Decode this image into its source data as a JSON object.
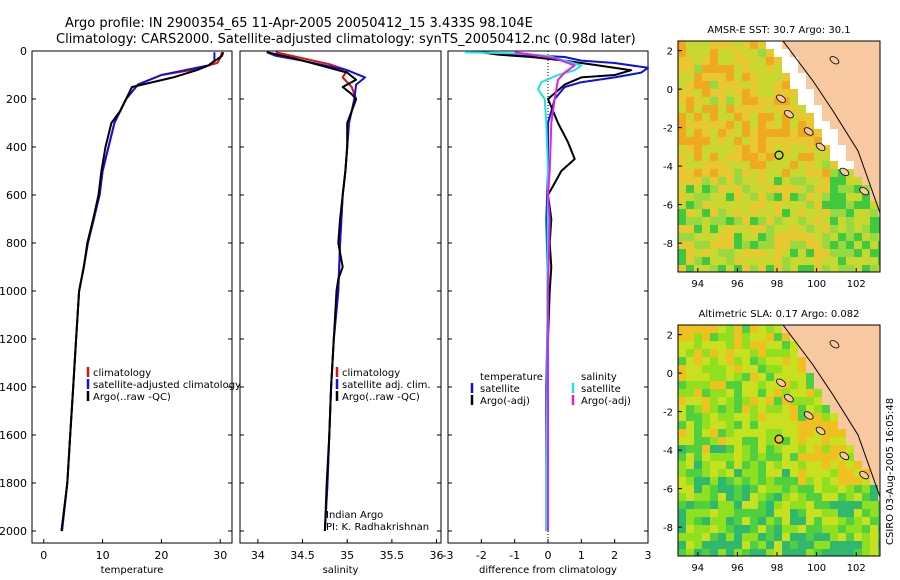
{
  "header": {
    "line1": "Argo profile: IN 2900354_65 11-Apr-2005 20050412_15 3.433S 98.104E",
    "line2": "Climatology: CARS2000. Satellite-adjusted climatology: synTS_20050412.nc (0.98d later)"
  },
  "side_stamp": "CSIRO 03-Aug-2005 16:05:48",
  "colors": {
    "red": "#e01010",
    "blue": "#1010e0",
    "black": "#000000",
    "cyan": "#20e0e8",
    "magenta": "#e020e0"
  },
  "chart_data": [
    {
      "type": "line",
      "name": "temperature",
      "xlabel": "temperature",
      "xlim": [
        -2,
        32
      ],
      "ylim": [
        0,
        2050
      ],
      "xticks": [
        "0",
        "10",
        "20",
        "30"
      ],
      "xtick_values": [
        0,
        10,
        20,
        30
      ],
      "yticks": [
        "0",
        "200",
        "400",
        "600",
        "800",
        "1000",
        "1200",
        "1400",
        "1600",
        "1800",
        "2000"
      ],
      "ytick_values": [
        0,
        200,
        400,
        600,
        800,
        1000,
        1200,
        1400,
        1600,
        1800,
        2000
      ],
      "legend": [
        "climatology",
        "satellite-adjusted climatology",
        "Argo(..raw -QC)"
      ],
      "series": [
        {
          "name": "climatology",
          "color": "red",
          "points": [
            [
              30.3,
              5
            ],
            [
              30,
              30
            ],
            [
              29.5,
              50
            ],
            [
              25,
              80
            ],
            [
              20,
              100
            ],
            [
              16,
              140
            ],
            [
              14,
              200
            ],
            [
              13,
              250
            ],
            [
              12,
              300
            ],
            [
              11,
              400
            ],
            [
              10,
              500
            ],
            [
              9.5,
              600
            ],
            [
              8.5,
              700
            ],
            [
              7.5,
              800
            ],
            [
              6.8,
              900
            ],
            [
              6,
              1000
            ],
            [
              5.5,
              1200
            ],
            [
              5,
              1400
            ],
            [
              4.5,
              1600
            ],
            [
              4,
              1800
            ],
            [
              3.1,
              2000
            ]
          ]
        },
        {
          "name": "satellite-adjusted climatology",
          "color": "blue",
          "points": [
            [
              29,
              5
            ],
            [
              29,
              40
            ],
            [
              28,
              60
            ],
            [
              24,
              80
            ],
            [
              20,
              100
            ],
            [
              16,
              140
            ],
            [
              14,
              200
            ],
            [
              13,
              250
            ],
            [
              12,
              300
            ],
            [
              11,
              400
            ],
            [
              10,
              500
            ],
            [
              9.5,
              600
            ],
            [
              8.5,
              700
            ],
            [
              7.5,
              800
            ],
            [
              6.8,
              900
            ],
            [
              6,
              1000
            ],
            [
              5.5,
              1200
            ],
            [
              5,
              1400
            ],
            [
              4.5,
              1600
            ],
            [
              4,
              1800
            ],
            [
              3.1,
              2000
            ]
          ]
        },
        {
          "name": "Argo(..raw -QC)",
          "color": "black",
          "points": [
            [
              30.5,
              5
            ],
            [
              30.3,
              20
            ],
            [
              28,
              60
            ],
            [
              26,
              80
            ],
            [
              22,
              110
            ],
            [
              15,
              150
            ],
            [
              14,
              200
            ],
            [
              13,
              250
            ],
            [
              11.5,
              300
            ],
            [
              10.5,
              400
            ],
            [
              9.8,
              500
            ],
            [
              9.3,
              600
            ],
            [
              8.4,
              700
            ],
            [
              7.4,
              800
            ],
            [
              6.8,
              900
            ],
            [
              6,
              1000
            ],
            [
              5.5,
              1200
            ],
            [
              5,
              1400
            ],
            [
              4.5,
              1600
            ],
            [
              4,
              1800
            ],
            [
              3,
              2000
            ]
          ]
        }
      ]
    },
    {
      "type": "line",
      "name": "salinity",
      "xlabel": "salinity",
      "xlim": [
        33.8,
        36.05
      ],
      "ylim": [
        0,
        2050
      ],
      "xticks": [
        "34",
        "34.5",
        "35",
        "35.5",
        "36"
      ],
      "xtick_values": [
        34,
        34.5,
        35,
        35.5,
        36
      ],
      "legend": [
        "climatology",
        "satellite adj. clim.",
        "Argo(..raw -QC)"
      ],
      "annotation": [
        "Indian Argo",
        "PI: K. Radhakrishnan"
      ],
      "series": [
        {
          "name": "climatology",
          "color": "red",
          "points": [
            [
              34.2,
              5
            ],
            [
              34.5,
              30
            ],
            [
              34.8,
              55
            ],
            [
              35,
              80
            ],
            [
              34.95,
              110
            ],
            [
              35.05,
              150
            ],
            [
              35.1,
              200
            ],
            [
              35.05,
              250
            ],
            [
              35.02,
              300
            ],
            [
              35,
              400
            ],
            [
              34.98,
              500
            ],
            [
              34.95,
              600
            ],
            [
              34.92,
              800
            ],
            [
              34.9,
              1000
            ],
            [
              34.85,
              1200
            ],
            [
              34.82,
              1400
            ],
            [
              34.8,
              1600
            ],
            [
              34.78,
              1800
            ],
            [
              34.75,
              2000
            ]
          ]
        },
        {
          "name": "satellite adj. clim.",
          "color": "blue",
          "points": [
            [
              34.1,
              5
            ],
            [
              34.2,
              20
            ],
            [
              34.5,
              40
            ],
            [
              35,
              80
            ],
            [
              35.2,
              110
            ],
            [
              35.1,
              140
            ],
            [
              35.08,
              200
            ],
            [
              35.05,
              250
            ],
            [
              35.02,
              300
            ],
            [
              35,
              400
            ],
            [
              34.98,
              500
            ],
            [
              34.95,
              600
            ],
            [
              34.92,
              800
            ],
            [
              34.9,
              1000
            ],
            [
              34.85,
              1200
            ],
            [
              34.82,
              1400
            ],
            [
              34.8,
              1600
            ],
            [
              34.78,
              1800
            ],
            [
              34.75,
              2000
            ]
          ]
        },
        {
          "name": "Argo(..raw -QC)",
          "color": "black",
          "points": [
            [
              34.1,
              5
            ],
            [
              34.4,
              30
            ],
            [
              34.7,
              60
            ],
            [
              35,
              90
            ],
            [
              35.1,
              120
            ],
            [
              34.95,
              150
            ],
            [
              35.05,
              180
            ],
            [
              35.1,
              200
            ],
            [
              35.05,
              250
            ],
            [
              35,
              300
            ],
            [
              35,
              400
            ],
            [
              34.98,
              500
            ],
            [
              34.95,
              600
            ],
            [
              34.92,
              700
            ],
            [
              34.9,
              800
            ],
            [
              34.95,
              900
            ],
            [
              34.9,
              950
            ],
            [
              34.88,
              1000
            ],
            [
              34.85,
              1200
            ],
            [
              34.82,
              1400
            ],
            [
              34.8,
              1600
            ],
            [
              34.77,
              1800
            ],
            [
              34.75,
              2000
            ]
          ]
        }
      ]
    },
    {
      "type": "line",
      "name": "difference",
      "xlabel": "difference from climatology",
      "xlim": [
        -3,
        3
      ],
      "ylim": [
        0,
        2050
      ],
      "xticks": [
        "-3",
        "-2",
        "-1",
        "0",
        "1",
        "2",
        "3"
      ],
      "xtick_values": [
        -3,
        -2,
        -1,
        0,
        1,
        2,
        3
      ],
      "legend_left": [
        "temperature",
        "satellite",
        "Argo(-adj)"
      ],
      "legend_right": [
        "salinity",
        "satellite",
        "Argo(-adj)"
      ],
      "series": [
        {
          "name": "temperature satellite",
          "color": "blue",
          "points": [
            [
              -2,
              5
            ],
            [
              -1.5,
              10
            ],
            [
              -0.8,
              15
            ],
            [
              0.5,
              25
            ],
            [
              1,
              40
            ],
            [
              2,
              50
            ],
            [
              3,
              70
            ],
            [
              2.8,
              90
            ],
            [
              2,
              110
            ],
            [
              1,
              130
            ],
            [
              0.5,
              150
            ],
            [
              0.2,
              200
            ],
            [
              0,
              300
            ],
            [
              0,
              500
            ],
            [
              -0.05,
              700
            ],
            [
              0,
              1000
            ],
            [
              -0.05,
              1400
            ],
            [
              -0.05,
              1800
            ],
            [
              -0.05,
              2000
            ]
          ]
        },
        {
          "name": "temperature Argo(-adj)",
          "color": "black",
          "points": [
            [
              -2,
              5
            ],
            [
              -1.5,
              15
            ],
            [
              -0.5,
              25
            ],
            [
              0.5,
              40
            ],
            [
              1.5,
              60
            ],
            [
              2.5,
              80
            ],
            [
              2,
              100
            ],
            [
              1,
              110
            ],
            [
              0.5,
              140
            ],
            [
              0,
              200
            ],
            [
              0.3,
              300
            ],
            [
              0.6,
              380
            ],
            [
              0.8,
              450
            ],
            [
              0.4,
              500
            ],
            [
              0.2,
              550
            ],
            [
              0,
              600
            ],
            [
              0.1,
              700
            ],
            [
              0.05,
              800
            ],
            [
              0.1,
              900
            ],
            [
              0.05,
              1000
            ],
            [
              0,
              1200
            ],
            [
              0,
              1400
            ],
            [
              0,
              1600
            ],
            [
              0,
              1800
            ],
            [
              0,
              2000
            ]
          ]
        },
        {
          "name": "salinity satellite",
          "color": "cyan",
          "points": [
            [
              -2.5,
              5
            ],
            [
              -1,
              10
            ],
            [
              0,
              20
            ],
            [
              0.5,
              40
            ],
            [
              1,
              60
            ],
            [
              0.8,
              80
            ],
            [
              0.3,
              100
            ],
            [
              -0.2,
              130
            ],
            [
              -0.3,
              160
            ],
            [
              -0.1,
              200
            ],
            [
              -0.05,
              300
            ],
            [
              0,
              500
            ],
            [
              -0.02,
              1000
            ],
            [
              -0.02,
              1400
            ],
            [
              -0.05,
              1800
            ],
            [
              -0.05,
              2000
            ]
          ]
        },
        {
          "name": "salinity Argo(-adj)",
          "color": "magenta",
          "points": [
            [
              -1,
              5
            ],
            [
              -0.5,
              15
            ],
            [
              0.2,
              30
            ],
            [
              0.8,
              60
            ],
            [
              0.5,
              90
            ],
            [
              0.3,
              120
            ],
            [
              0.25,
              160
            ],
            [
              0.2,
              200
            ],
            [
              0.1,
              300
            ],
            [
              0.05,
              500
            ],
            [
              0,
              600
            ],
            [
              0.05,
              700
            ],
            [
              0,
              1000
            ],
            [
              0,
              1400
            ],
            [
              0,
              1800
            ],
            [
              0,
              2000
            ]
          ]
        }
      ]
    }
  ],
  "maps": [
    {
      "title": "AMSR-E SST: 30.7 Argo: 30.1",
      "xticks": [
        "94",
        "96",
        "98",
        "100",
        "102"
      ],
      "xtick_values": [
        94,
        96,
        98,
        100,
        102
      ],
      "yticks": [
        "2",
        "0",
        "-2",
        "-4",
        "-6",
        "-8"
      ],
      "ytick_values": [
        2,
        0,
        -2,
        -4,
        -6,
        -8
      ],
      "xlim": [
        93,
        103.2
      ],
      "ylim": [
        -9.5,
        2.5
      ],
      "marker": [
        98.1,
        -3.43
      ]
    },
    {
      "title": "Altimetric SLA: 0.17 Argo: 0.082",
      "xticks": [
        "94",
        "96",
        "98",
        "100",
        "102"
      ],
      "xtick_values": [
        94,
        96,
        98,
        100,
        102
      ],
      "yticks": [
        "2",
        "0",
        "-2",
        "-4",
        "-6",
        "-8"
      ],
      "ytick_values": [
        2,
        0,
        -2,
        -4,
        -6,
        -8
      ],
      "xlim": [
        93,
        103.2
      ],
      "ylim": [
        -9.5,
        2.5
      ],
      "marker": [
        98.1,
        -3.43
      ]
    }
  ]
}
